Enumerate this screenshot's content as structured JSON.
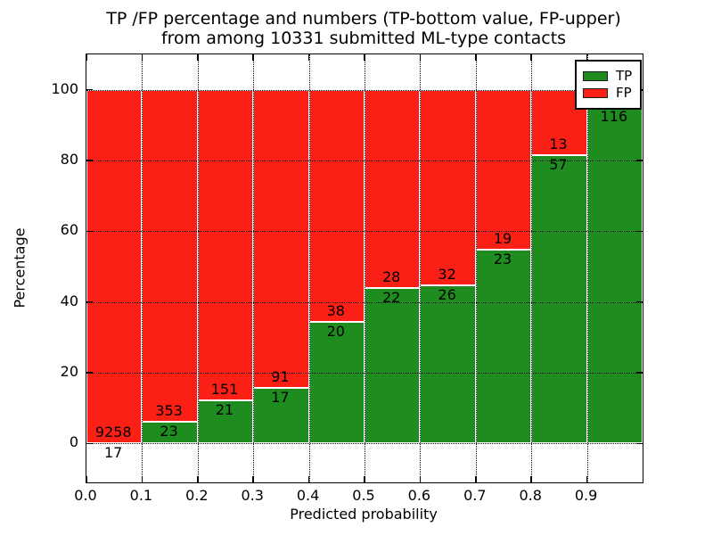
{
  "chart_data": {
    "type": "bar",
    "stacked": true,
    "title_line1": "TP /FP percentage and numbers (TP-bottom value, FP-upper)",
    "title_line2": "from among 10331 submitted ML-type contacts",
    "xlabel": "Predicted probability",
    "ylabel": "Percentage",
    "xlim": [
      0.0,
      1.0
    ],
    "ylim": [
      -11,
      110
    ],
    "grid": true,
    "legend_position": "upper right",
    "x_tick_values": [
      0.0,
      0.1,
      0.2,
      0.3,
      0.4,
      0.5,
      0.6,
      0.7,
      0.8,
      0.9
    ],
    "x_tick_labels": [
      "0.0",
      "0.1",
      "0.2",
      "0.3",
      "0.4",
      "0.5",
      "0.6",
      "0.7",
      "0.8",
      "0.9"
    ],
    "y_tick_values": [
      0,
      20,
      40,
      60,
      80,
      100
    ],
    "y_tick_labels": [
      "0",
      "20",
      "40",
      "60",
      "80",
      "100"
    ],
    "x_gridline_values": [
      0.1,
      0.2,
      0.3,
      0.4,
      0.5,
      0.6,
      0.7,
      0.8,
      0.9
    ],
    "y_gridline_values": [
      0,
      20,
      40,
      60,
      80,
      100
    ],
    "series": [
      {
        "name": "TP",
        "color": "#1f8c1f"
      },
      {
        "name": "FP",
        "color": "#fb2016"
      }
    ],
    "bins": [
      {
        "x_start": 0.0,
        "x_end": 0.1,
        "tp_count": 17,
        "fp_count": 9258,
        "tp_label": "17",
        "fp_label": "9258",
        "tp_pct": 0.18,
        "fp_pct": 99.82
      },
      {
        "x_start": 0.1,
        "x_end": 0.2,
        "tp_count": 23,
        "fp_count": 353,
        "tp_label": "23",
        "fp_label": "353",
        "tp_pct": 6.12,
        "fp_pct": 93.88
      },
      {
        "x_start": 0.2,
        "x_end": 0.3,
        "tp_count": 21,
        "fp_count": 151,
        "tp_label": "21",
        "fp_label": "151",
        "tp_pct": 12.21,
        "fp_pct": 87.79
      },
      {
        "x_start": 0.3,
        "x_end": 0.4,
        "tp_count": 17,
        "fp_count": 91,
        "tp_label": "17",
        "fp_label": "91",
        "tp_pct": 15.74,
        "fp_pct": 84.26
      },
      {
        "x_start": 0.4,
        "x_end": 0.5,
        "tp_count": 20,
        "fp_count": 38,
        "tp_label": "20",
        "fp_label": "38",
        "tp_pct": 34.48,
        "fp_pct": 65.52
      },
      {
        "x_start": 0.5,
        "x_end": 0.6,
        "tp_count": 22,
        "fp_count": 28,
        "tp_label": "22",
        "fp_label": "28",
        "tp_pct": 44.0,
        "fp_pct": 56.0
      },
      {
        "x_start": 0.6,
        "x_end": 0.7,
        "tp_count": 26,
        "fp_count": 32,
        "tp_label": "26",
        "fp_label": "32",
        "tp_pct": 44.83,
        "fp_pct": 55.17
      },
      {
        "x_start": 0.7,
        "x_end": 0.8,
        "tp_count": 23,
        "fp_count": 19,
        "tp_label": "23",
        "fp_label": "19",
        "tp_pct": 54.76,
        "fp_pct": 45.24
      },
      {
        "x_start": 0.8,
        "x_end": 0.9,
        "tp_count": 57,
        "fp_count": 13,
        "tp_label": "57",
        "fp_label": "13",
        "tp_pct": 81.43,
        "fp_pct": 18.57
      },
      {
        "x_start": 0.9,
        "x_end": 1.0,
        "tp_count": 116,
        "fp_count": null,
        "tp_label": "116",
        "fp_label": "",
        "tp_pct": 95.08,
        "fp_pct": 4.92
      }
    ]
  },
  "legend": {
    "items": [
      {
        "label": "TP",
        "color": "#1f8c1f"
      },
      {
        "label": "FP",
        "color": "#fb2016"
      }
    ]
  }
}
